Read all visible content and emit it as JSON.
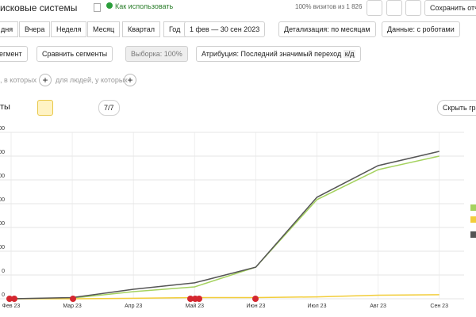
{
  "header": {
    "title": "исковые системы",
    "help": "Как использовать",
    "sample_info": "100% визитов из 1 826",
    "save_button": "Сохранить отч"
  },
  "periods": [
    "дня",
    "Вчера",
    "Неделя",
    "Месяц",
    "Квартал",
    "Год"
  ],
  "date_range": "1 фев — 30 сен 2023",
  "detail": "Детализация: по месяцам",
  "data_mode": "Данные: с роботами",
  "segment": "егмент",
  "compare": "Сравнить сегменты",
  "sample": "Выборка: 100%",
  "attribution": "Атрибуция: Последний значимый переход",
  "attribution_tag": "к/д",
  "filters": [
    ", в которых",
    "для людей, у которых"
  ],
  "chart_header": {
    "title": "ты",
    "counter": "7/7",
    "hide_button": "Скрыть гра"
  },
  "chart_data": {
    "type": "line",
    "categories": [
      "Фев 23",
      "Мар 23",
      "Апр 23",
      "Май 23",
      "Июн 23",
      "Июл 23",
      "Авг 23",
      "Сен 23"
    ],
    "series": [
      {
        "color": "#a5d25f",
        "values": [
          0,
          0.03,
          0.3,
          0.5,
          1.33,
          4.17,
          5.43,
          6.0
        ]
      },
      {
        "color": "#f2cd3b",
        "values": [
          0,
          0,
          0.02,
          0.05,
          0.05,
          0.08,
          0.15,
          0.17
        ]
      },
      {
        "color": "#555555",
        "values": [
          0,
          0.05,
          0.4,
          0.67,
          1.33,
          4.27,
          5.6,
          6.2
        ]
      }
    ],
    "ylim": [
      0,
      7
    ],
    "yticks": [
      {
        "value": 0,
        "label": "0"
      },
      {
        "value": 1,
        "label": "0"
      },
      {
        "value": 2,
        "label": "00"
      },
      {
        "value": 3,
        "label": "00"
      },
      {
        "value": 4,
        "label": "00"
      },
      {
        "value": 5,
        "label": "00"
      },
      {
        "value": 6,
        "label": "00"
      },
      {
        "value": 7,
        "label": "00"
      }
    ],
    "grid": true
  }
}
